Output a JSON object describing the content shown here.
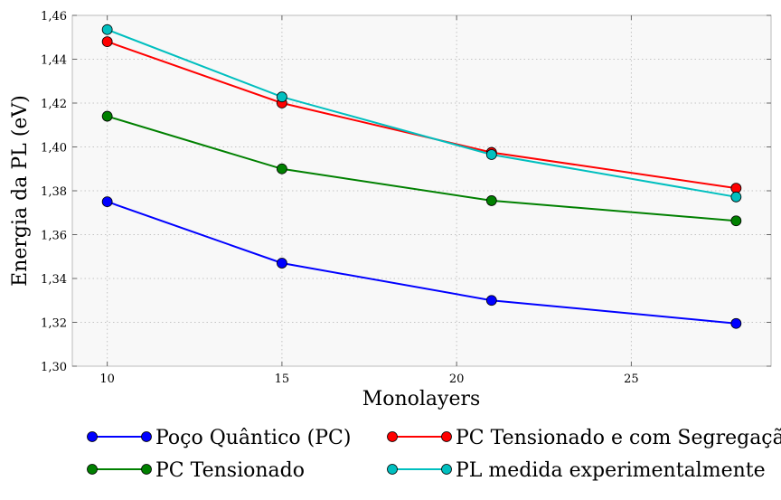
{
  "chart_data": {
    "type": "line",
    "title": "",
    "xlabel": "Monolayers",
    "ylabel": "Energia da PL (eV)",
    "xlim": [
      9,
      29
    ],
    "ylim": [
      1.3,
      1.46
    ],
    "x_ticks": [
      10,
      15,
      20,
      25
    ],
    "x_tick_labels": [
      "10",
      "15",
      "20",
      "25"
    ],
    "y_ticks": [
      1.3,
      1.32,
      1.34,
      1.36,
      1.38,
      1.4,
      1.42,
      1.44,
      1.46
    ],
    "y_tick_labels": [
      "1,30",
      "1,32",
      "1,34",
      "1,36",
      "1,38",
      "1,40",
      "1,42",
      "1,44",
      "1,46"
    ],
    "grid": true,
    "legend_position": "bottom, outside plot, two columns",
    "x": [
      10,
      15,
      21,
      28
    ],
    "series": [
      {
        "name": "Poço Quântico (PC)",
        "color": "#0000ff",
        "values": [
          1.375,
          1.347,
          1.33,
          1.3195
        ]
      },
      {
        "name": "PC Tensionado",
        "color": "#008000",
        "values": [
          1.414,
          1.39,
          1.3755,
          1.3663
        ]
      },
      {
        "name": "PC Tensionado e com Segregação",
        "color": "#ff0000",
        "values": [
          1.448,
          1.42,
          1.3975,
          1.3812
        ]
      },
      {
        "name": "PL medida experimentalmente",
        "color": "#00bfbf",
        "values": [
          1.4535,
          1.4228,
          1.3965,
          1.3772
        ]
      }
    ],
    "legend_order": [
      0,
      2,
      1,
      3
    ]
  }
}
